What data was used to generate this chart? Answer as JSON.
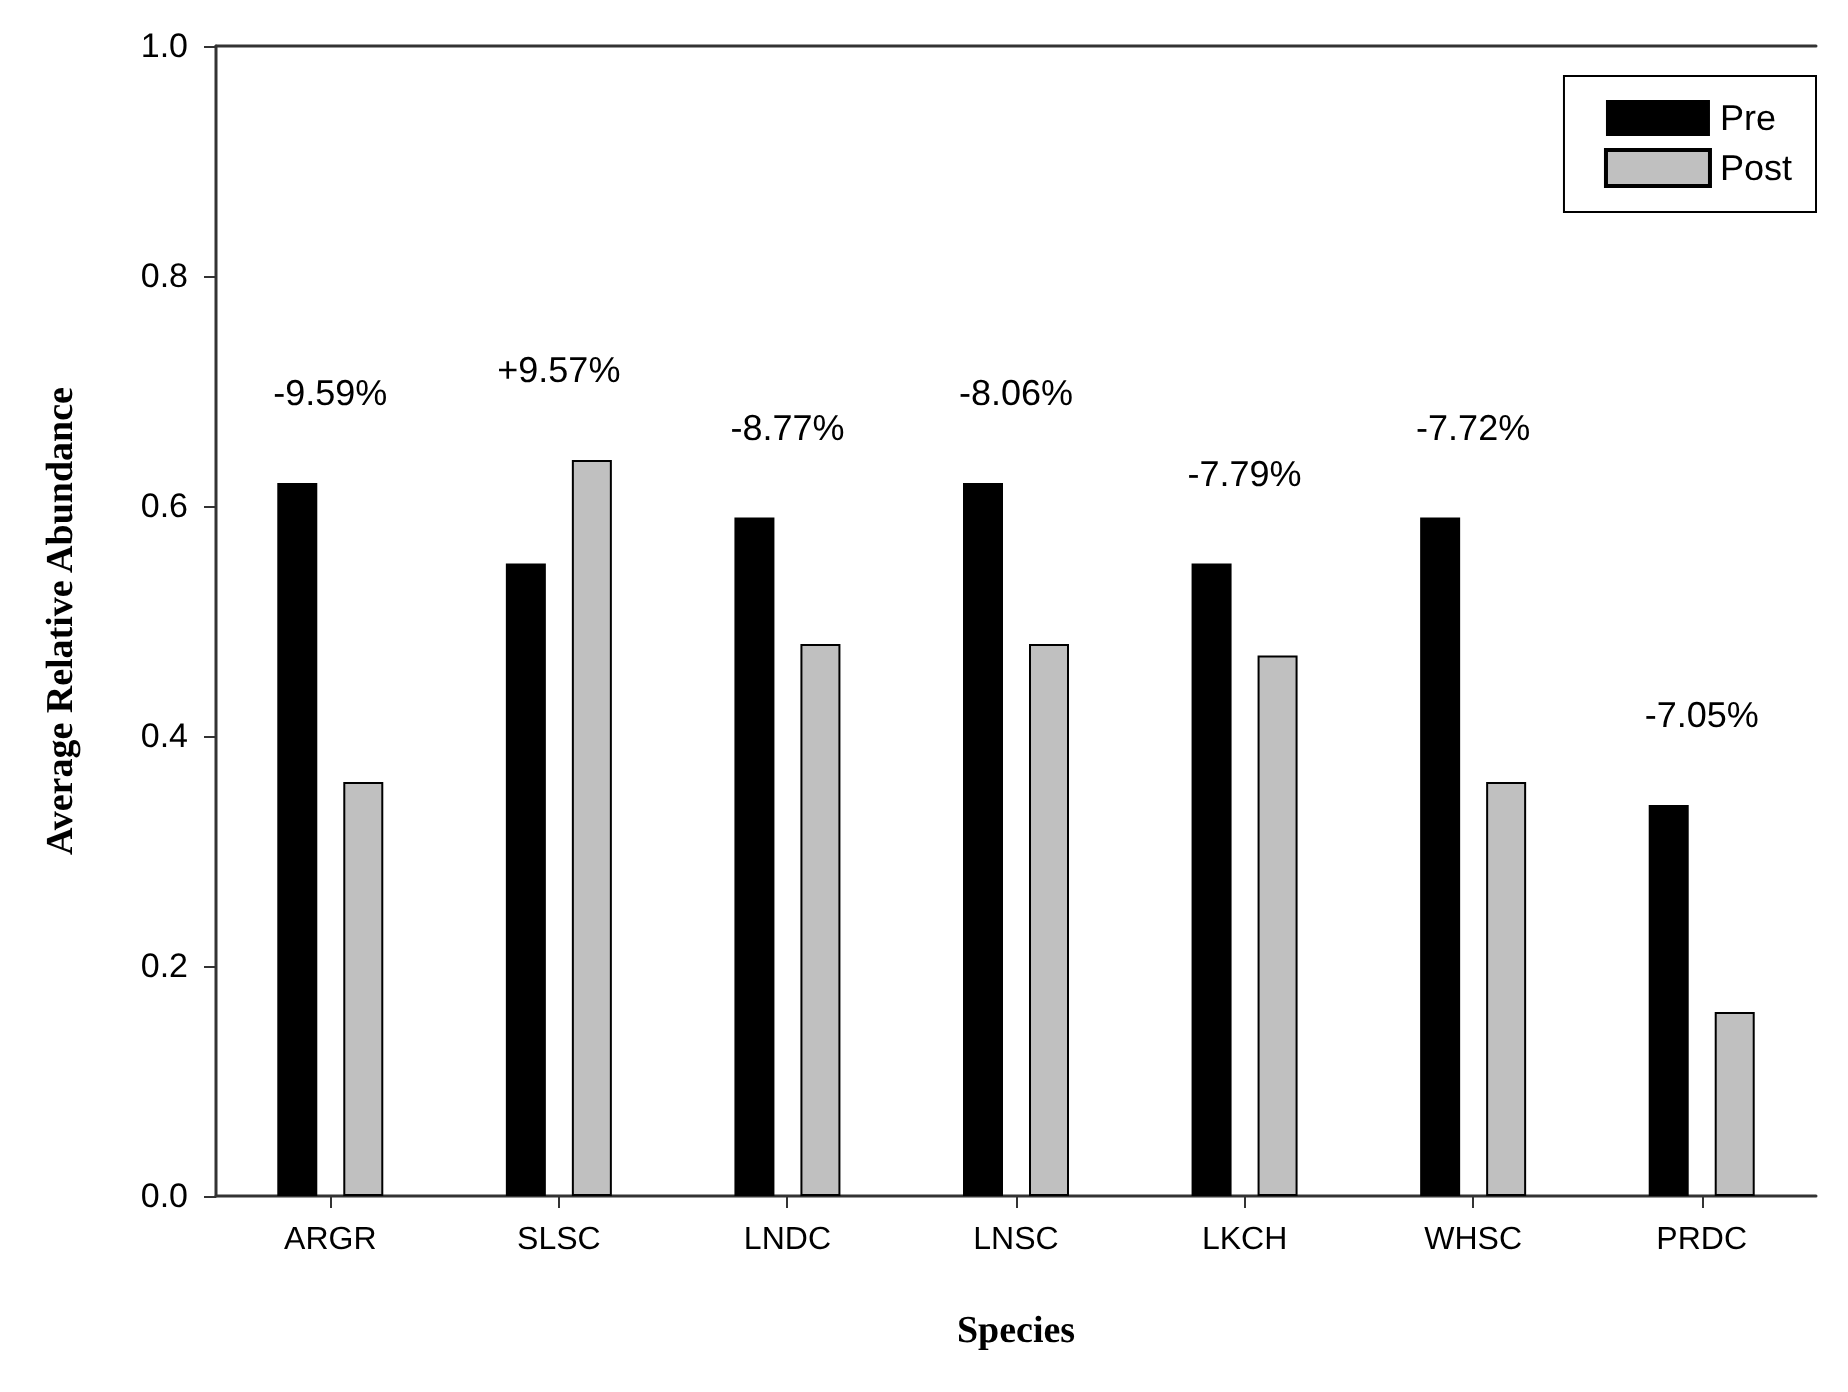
{
  "chart_data": {
    "type": "bar",
    "xlabel": "Species",
    "ylabel": "Average Relative Abundance",
    "categories": [
      "ARGR",
      "SLSC",
      "LNDC",
      "LNSC",
      "LKCH",
      "WHSC",
      "PRDC"
    ],
    "series": [
      {
        "name": "Pre",
        "color": "#000000",
        "values": [
          0.62,
          0.55,
          0.59,
          0.62,
          0.55,
          0.59,
          0.34
        ]
      },
      {
        "name": "Post",
        "color": "#c0c0c0",
        "values": [
          0.36,
          0.64,
          0.48,
          0.48,
          0.47,
          0.36,
          0.16
        ]
      }
    ],
    "ylim": [
      0,
      1.0
    ],
    "yticks": [
      {
        "value": 0,
        "label": "0.0"
      },
      0.2,
      0.4,
      0.6,
      0.8,
      {
        "value": 1,
        "label": "1.0"
      }
    ],
    "annotations": [
      "-9.59%",
      "+9.57%",
      "-8.77%",
      "-8.06%",
      "-7.79%",
      "-7.72%",
      "-7.05%"
    ],
    "grid": false,
    "legend": "top right"
  }
}
